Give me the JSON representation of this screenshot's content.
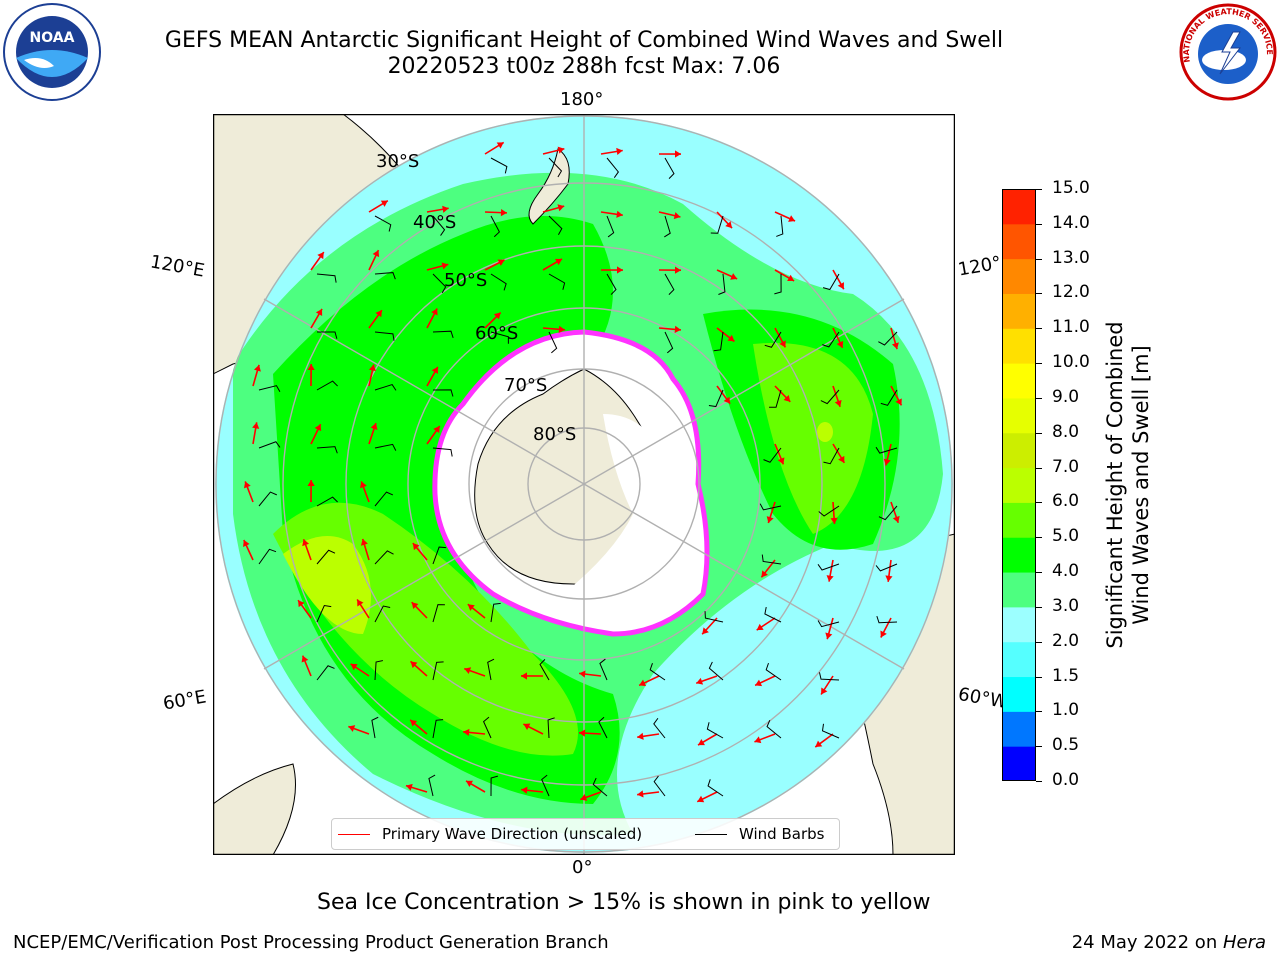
{
  "title_line1": "GEFS MEAN Antarctic Significant Height of Combined Wind Waves and Swell",
  "title_line2": "20220523 t00z 288h fcst   Max: 7.06",
  "logos": {
    "left": {
      "name": "noaa-logo",
      "text": "NOAA"
    },
    "right": {
      "name": "nws-logo",
      "text": "NATIONAL WEATHER SERVICE"
    }
  },
  "map": {
    "longitude_labels": {
      "top": "180°",
      "bottom": "0°",
      "left_upper": "120°E",
      "left_lower": "60°E",
      "right_upper": "120°",
      "right_lower": "60°W"
    },
    "latitude_labels": [
      "30°S",
      "40°S",
      "50°S",
      "60°S",
      "70°S",
      "80°S"
    ],
    "colors": {
      "land": "#efecd9",
      "ice_edge": "#ff33ff",
      "ice": "#ffffff",
      "grid": "#b0b0b0",
      "wave_arrow": "#ff0000",
      "wind_barb": "#000000"
    },
    "legend": [
      {
        "label": "Primary Wave Direction (unscaled)",
        "color": "#ff0000"
      },
      {
        "label": "Wind Barbs",
        "color": "#000000"
      }
    ]
  },
  "colorbar": {
    "label_line1": "Significant Height of Combined",
    "label_line2": "Wind Waves and Swell [m]",
    "ticks": [
      "0.0",
      "0.5",
      "1.0",
      "1.5",
      "2.0",
      "3.0",
      "4.0",
      "5.0",
      "6.0",
      "7.0",
      "8.0",
      "9.0",
      "10.0",
      "11.0",
      "12.0",
      "13.0",
      "14.0",
      "15.0"
    ],
    "colors": [
      "#0000ff",
      "#0077ff",
      "#00ffff",
      "#55ffff",
      "#9cffff",
      "#4dff80",
      "#00ff00",
      "#66ff00",
      "#bbff00",
      "#ccee00",
      "#e6ff00",
      "#ffff00",
      "#ffe000",
      "#ffb000",
      "#ff8800",
      "#ff5500",
      "#ff2200"
    ]
  },
  "note": "Sea Ice Concentration > 15% is shown in pink to yellow",
  "footer": {
    "left": "NCEP/EMC/Verification Post Processing Product Generation Branch",
    "right_date": "24 May 2022 on ",
    "right_host": "Hera"
  }
}
